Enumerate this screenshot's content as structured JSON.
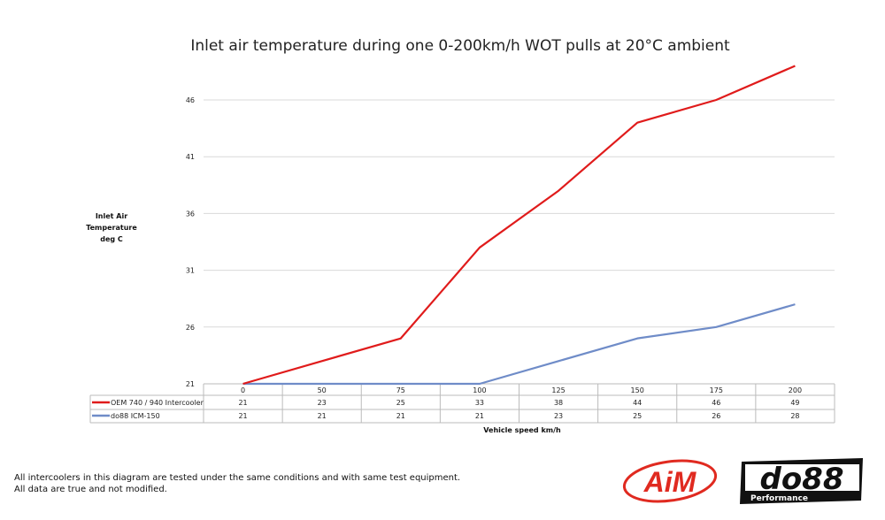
{
  "chart_data": {
    "type": "line",
    "title": "Inlet air temperature during one 0-200km/h WOT pulls at 20°C ambient",
    "ylabel_lines": [
      "Inlet Air",
      "Temperature",
      "deg C"
    ],
    "xlabel": "Vehicle speed km/h",
    "categories": [
      "0",
      "50",
      "75",
      "100",
      "125",
      "150",
      "175",
      "200"
    ],
    "yticks": [
      21,
      26,
      31,
      36,
      41,
      46
    ],
    "ylim": [
      21,
      49
    ],
    "grid": "horizontal",
    "legend": "data-table-below",
    "series": [
      {
        "name": "OEM 740 / 940 Intercooler",
        "color": "#e01b1b",
        "values": [
          21,
          23,
          25,
          33,
          38,
          44,
          46,
          49
        ]
      },
      {
        "name": "do88 ICM-150",
        "color": "#6f8cc8",
        "values": [
          21,
          21,
          21,
          21,
          23,
          25,
          26,
          28
        ]
      }
    ]
  },
  "footer": {
    "line1": "All intercoolers in this diagram are tested under the same conditions and with same test equipment.",
    "line2": "All data are true and not modified."
  },
  "logos": {
    "aim": "AiM",
    "do88": "do88",
    "do88_sub": "Performance"
  }
}
